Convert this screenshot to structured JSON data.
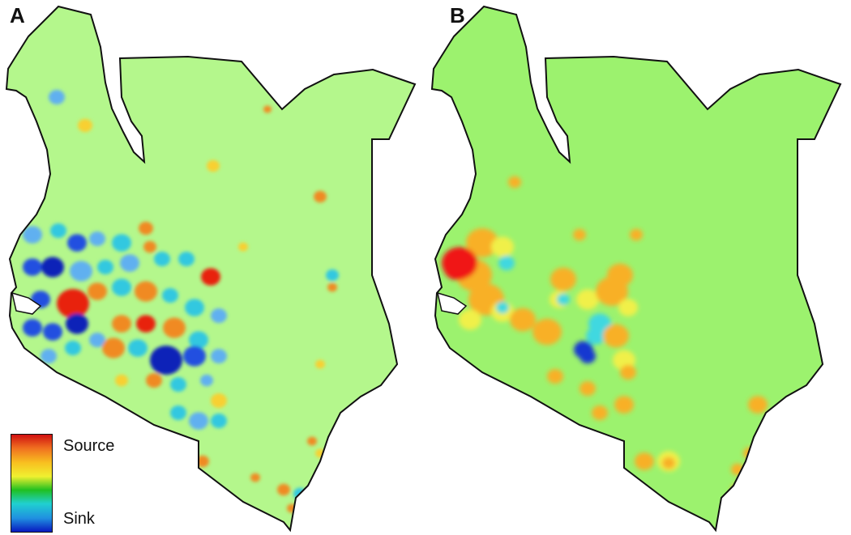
{
  "panels": [
    {
      "label": "A",
      "base_color": "#b4f78c"
    },
    {
      "label": "B",
      "base_color": "#9cf26e"
    }
  ],
  "legend": {
    "max_label": "Source",
    "min_label": "Sink",
    "colors": [
      "#d01010",
      "#f07020",
      "#f8c020",
      "#f0f030",
      "#20c020",
      "#20d0d0",
      "#2090e0",
      "#0818c0"
    ]
  }
}
